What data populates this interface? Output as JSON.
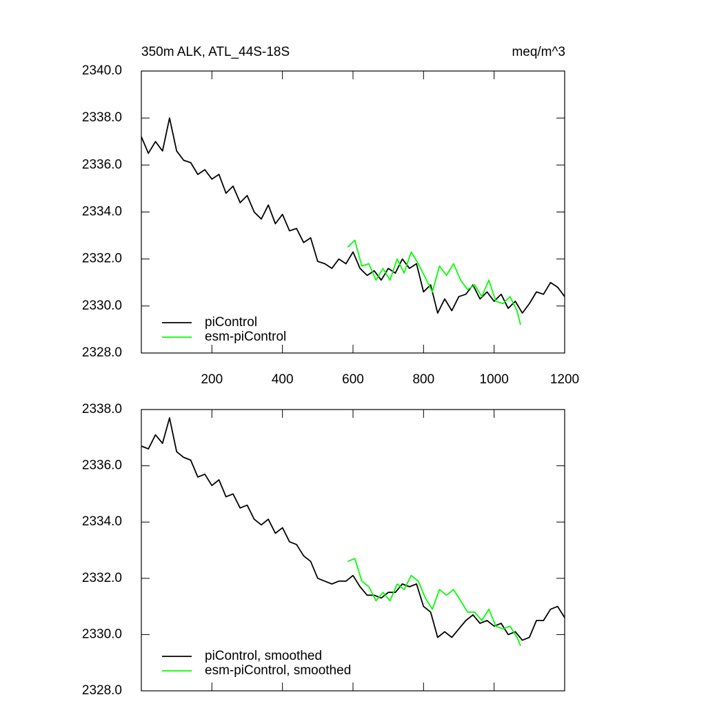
{
  "chart_data": [
    {
      "type": "line",
      "title": "350m ALK, ATL_44S-18S",
      "units": "meq/m^3",
      "xlim": [
        0,
        1200
      ],
      "xticks": [
        200,
        400,
        600,
        800,
        1000,
        1200
      ],
      "xtick_labels": true,
      "ylim": [
        2328,
        2340
      ],
      "yticks": [
        {
          "value": 2328,
          "label": "2328.0"
        },
        {
          "value": 2330,
          "label": "2330.0"
        },
        {
          "value": 2332,
          "label": "2332.0"
        },
        {
          "value": 2334,
          "label": "2334.0"
        },
        {
          "value": 2336,
          "label": "2336.0"
        },
        {
          "value": 2338,
          "label": "2338.0"
        },
        {
          "value": 2340,
          "label": "2340.0"
        }
      ],
      "legend": "lower left",
      "series": [
        {
          "name": "piControl",
          "color": "#000000",
          "x": [
            0,
            20,
            40,
            60,
            80,
            100,
            120,
            140,
            160,
            180,
            200,
            220,
            240,
            260,
            280,
            300,
            320,
            340,
            360,
            380,
            400,
            420,
            440,
            460,
            480,
            500,
            520,
            540,
            560,
            580,
            600,
            620,
            640,
            660,
            680,
            700,
            720,
            740,
            760,
            780,
            800,
            820,
            840,
            860,
            880,
            900,
            920,
            940,
            960,
            980,
            1000,
            1020,
            1040,
            1060,
            1080,
            1100,
            1120,
            1140,
            1160,
            1180,
            1200
          ],
          "values": [
            2337.2,
            2336.5,
            2337.0,
            2336.6,
            2338.0,
            2336.6,
            2336.2,
            2336.1,
            2335.6,
            2335.8,
            2335.4,
            2335.6,
            2334.8,
            2335.1,
            2334.4,
            2334.7,
            2334.0,
            2333.7,
            2334.3,
            2333.5,
            2333.9,
            2333.2,
            2333.3,
            2332.7,
            2332.9,
            2331.9,
            2331.8,
            2331.6,
            2332.0,
            2331.8,
            2332.3,
            2331.6,
            2331.3,
            2331.5,
            2331.1,
            2331.6,
            2331.4,
            2332.0,
            2331.6,
            2331.8,
            2330.6,
            2330.9,
            2329.7,
            2330.3,
            2329.8,
            2330.4,
            2330.5,
            2330.9,
            2330.3,
            2330.6,
            2330.2,
            2330.5,
            2329.9,
            2330.2,
            2329.7,
            2330.1,
            2330.6,
            2330.5,
            2331.0,
            2330.8,
            2330.4
          ]
        },
        {
          "name": "esm-piControl",
          "color": "#00ff00",
          "x": [
            585,
            605,
            625,
            645,
            665,
            685,
            705,
            725,
            745,
            765,
            785,
            805,
            825,
            845,
            865,
            885,
            905,
            925,
            945,
            965,
            985,
            1005,
            1025,
            1045,
            1065,
            1075
          ],
          "values": [
            2332.5,
            2332.8,
            2331.7,
            2331.8,
            2331.1,
            2331.6,
            2331.1,
            2332.0,
            2331.4,
            2332.3,
            2331.8,
            2331.2,
            2330.6,
            2331.7,
            2331.3,
            2331.8,
            2331.1,
            2330.7,
            2330.9,
            2330.4,
            2331.1,
            2330.2,
            2330.1,
            2330.4,
            2329.8,
            2329.2
          ]
        }
      ]
    },
    {
      "type": "line",
      "xlim": [
        0,
        1200
      ],
      "xticks": [
        200,
        400,
        600,
        800,
        1000,
        1200
      ],
      "xtick_labels": false,
      "ylim": [
        2328,
        2338
      ],
      "yticks": [
        {
          "value": 2328,
          "label": "2328.0"
        },
        {
          "value": 2330,
          "label": "2330.0"
        },
        {
          "value": 2332,
          "label": "2332.0"
        },
        {
          "value": 2334,
          "label": "2334.0"
        },
        {
          "value": 2336,
          "label": "2336.0"
        },
        {
          "value": 2338,
          "label": "2338.0"
        }
      ],
      "legend": "lower left",
      "series": [
        {
          "name": "piControl, smoothed",
          "color": "#000000",
          "x": [
            0,
            20,
            40,
            60,
            80,
            100,
            120,
            140,
            160,
            180,
            200,
            220,
            240,
            260,
            280,
            300,
            320,
            340,
            360,
            380,
            400,
            420,
            440,
            460,
            480,
            500,
            520,
            540,
            560,
            580,
            600,
            620,
            640,
            660,
            680,
            700,
            720,
            740,
            760,
            780,
            800,
            820,
            840,
            860,
            880,
            900,
            920,
            940,
            960,
            980,
            1000,
            1020,
            1040,
            1060,
            1080,
            1100,
            1120,
            1140,
            1160,
            1180,
            1200
          ],
          "values": [
            2336.7,
            2336.6,
            2337.1,
            2336.8,
            2337.7,
            2336.5,
            2336.3,
            2336.2,
            2335.6,
            2335.7,
            2335.3,
            2335.5,
            2334.9,
            2335.0,
            2334.5,
            2334.6,
            2334.1,
            2333.9,
            2334.1,
            2333.6,
            2333.8,
            2333.3,
            2333.2,
            2332.8,
            2332.6,
            2332.0,
            2331.9,
            2331.8,
            2331.9,
            2331.9,
            2332.1,
            2331.7,
            2331.4,
            2331.4,
            2331.3,
            2331.5,
            2331.5,
            2331.8,
            2331.7,
            2331.8,
            2331.0,
            2330.8,
            2329.9,
            2330.1,
            2329.9,
            2330.2,
            2330.5,
            2330.7,
            2330.4,
            2330.5,
            2330.3,
            2330.4,
            2330.0,
            2330.1,
            2329.8,
            2329.9,
            2330.5,
            2330.5,
            2330.9,
            2331.0,
            2330.6
          ]
        },
        {
          "name": "esm-piControl, smoothed",
          "color": "#00ff00",
          "x": [
            585,
            605,
            625,
            645,
            665,
            685,
            705,
            725,
            745,
            765,
            785,
            805,
            825,
            845,
            865,
            885,
            905,
            925,
            945,
            965,
            985,
            1005,
            1025,
            1045,
            1065,
            1075
          ],
          "values": [
            2332.6,
            2332.7,
            2331.9,
            2331.7,
            2331.2,
            2331.5,
            2331.2,
            2331.8,
            2331.6,
            2332.1,
            2331.9,
            2331.3,
            2330.9,
            2331.6,
            2331.4,
            2331.6,
            2331.2,
            2330.8,
            2330.8,
            2330.5,
            2330.9,
            2330.3,
            2330.2,
            2330.3,
            2329.9,
            2329.6
          ]
        }
      ]
    }
  ]
}
